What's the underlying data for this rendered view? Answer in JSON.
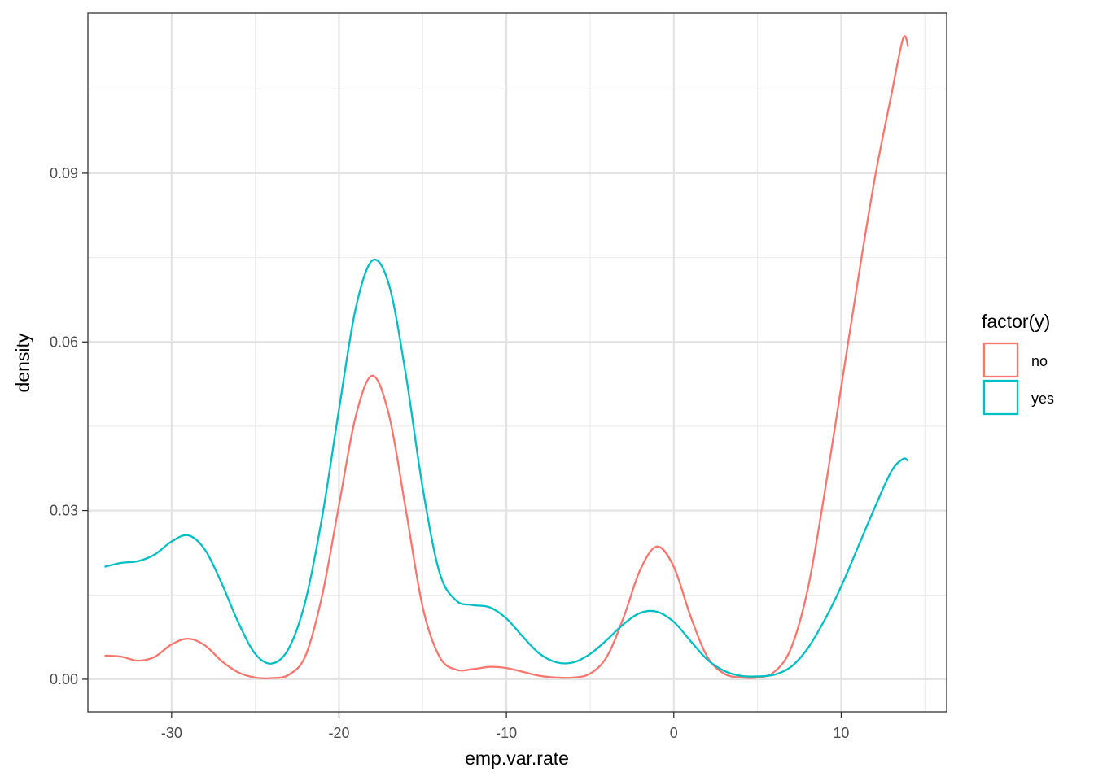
{
  "chart_data": {
    "type": "line",
    "xlabel": "emp.var.rate",
    "ylabel": "density",
    "xlim": [
      -35,
      16.3
    ],
    "ylim": [
      -0.0058,
      0.1185
    ],
    "x_ticks": [
      -30,
      -20,
      -10,
      0,
      10
    ],
    "x_tick_labels": [
      "-30",
      "-20",
      "-10",
      "0",
      "10"
    ],
    "y_ticks": [
      0.0,
      0.03,
      0.06,
      0.09
    ],
    "y_tick_labels": [
      "0.00",
      "0.03",
      "0.06",
      "0.09"
    ],
    "grid": true,
    "legend": {
      "title": "factor(y)",
      "position": "right"
    },
    "series": [
      {
        "name": "no",
        "color": "#F8766D",
        "points": [
          [
            -34,
            0.0042
          ],
          [
            -33,
            0.004
          ],
          [
            -32,
            0.0033
          ],
          [
            -31,
            0.004
          ],
          [
            -30,
            0.0062
          ],
          [
            -29,
            0.0072
          ],
          [
            -28,
            0.006
          ],
          [
            -27,
            0.0032
          ],
          [
            -26,
            0.0012
          ],
          [
            -25,
            0.0003
          ],
          [
            -24,
            0.0002
          ],
          [
            -23,
            0.0008
          ],
          [
            -22,
            0.0042
          ],
          [
            -21,
            0.015
          ],
          [
            -20,
            0.031
          ],
          [
            -19,
            0.0468
          ],
          [
            -18,
            0.054
          ],
          [
            -17,
            0.0468
          ],
          [
            -16,
            0.03
          ],
          [
            -15,
            0.0128
          ],
          [
            -14,
            0.004
          ],
          [
            -13,
            0.0017
          ],
          [
            -12,
            0.0018
          ],
          [
            -11,
            0.0022
          ],
          [
            -10,
            0.002
          ],
          [
            -9,
            0.0013
          ],
          [
            -8,
            0.0006
          ],
          [
            -7,
            0.0003
          ],
          [
            -6,
            0.0003
          ],
          [
            -5,
            0.001
          ],
          [
            -4,
            0.004
          ],
          [
            -3,
            0.011
          ],
          [
            -2,
            0.0195
          ],
          [
            -1,
            0.0236
          ],
          [
            0,
            0.02
          ],
          [
            1,
            0.0112
          ],
          [
            2,
            0.004
          ],
          [
            3,
            0.001
          ],
          [
            4,
            0.0003
          ],
          [
            5,
            0.0003
          ],
          [
            6,
            0.0013
          ],
          [
            7,
            0.0055
          ],
          [
            8,
            0.016
          ],
          [
            9,
            0.033
          ],
          [
            10,
            0.052
          ],
          [
            11,
            0.071
          ],
          [
            12,
            0.089
          ],
          [
            13,
            0.104
          ],
          [
            13.7,
            0.114
          ],
          [
            14,
            0.1125
          ]
        ]
      },
      {
        "name": "yes",
        "color": "#00BFC4",
        "points": [
          [
            -34,
            0.02
          ],
          [
            -33,
            0.0207
          ],
          [
            -32,
            0.021
          ],
          [
            -31,
            0.0222
          ],
          [
            -30,
            0.0245
          ],
          [
            -29,
            0.0256
          ],
          [
            -28,
            0.023
          ],
          [
            -27,
            0.017
          ],
          [
            -26,
            0.01
          ],
          [
            -25,
            0.0045
          ],
          [
            -24,
            0.0028
          ],
          [
            -23,
            0.0055
          ],
          [
            -22,
            0.014
          ],
          [
            -21,
            0.029
          ],
          [
            -20,
            0.048
          ],
          [
            -19,
            0.066
          ],
          [
            -18,
            0.0745
          ],
          [
            -17,
            0.07
          ],
          [
            -16,
            0.054
          ],
          [
            -15,
            0.034
          ],
          [
            -14,
            0.019
          ],
          [
            -13,
            0.014
          ],
          [
            -12,
            0.0132
          ],
          [
            -11,
            0.0128
          ],
          [
            -10,
            0.0108
          ],
          [
            -9,
            0.0075
          ],
          [
            -8,
            0.0045
          ],
          [
            -7,
            0.003
          ],
          [
            -6,
            0.003
          ],
          [
            -5,
            0.0045
          ],
          [
            -4,
            0.007
          ],
          [
            -3,
            0.0098
          ],
          [
            -2,
            0.0118
          ],
          [
            -1,
            0.012
          ],
          [
            0,
            0.0102
          ],
          [
            1,
            0.0068
          ],
          [
            2,
            0.0035
          ],
          [
            3,
            0.0015
          ],
          [
            4,
            0.0006
          ],
          [
            5,
            0.0005
          ],
          [
            6,
            0.0008
          ],
          [
            7,
            0.0022
          ],
          [
            8,
            0.0055
          ],
          [
            9,
            0.0105
          ],
          [
            10,
            0.0165
          ],
          [
            11,
            0.0235
          ],
          [
            12,
            0.0305
          ],
          [
            13,
            0.037
          ],
          [
            13.7,
            0.0392
          ],
          [
            14,
            0.0388
          ]
        ]
      }
    ]
  }
}
